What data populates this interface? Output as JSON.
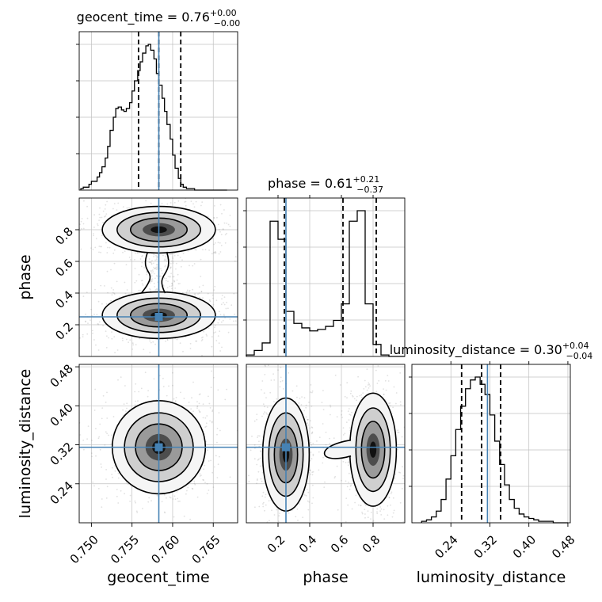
{
  "figure": {
    "type": "corner-plot"
  },
  "chart_data": {
    "type": "corner",
    "parameters": [
      "geocent_time",
      "phase",
      "luminosity_distance"
    ],
    "truths": {
      "geocent_time": 0.7583,
      "phase": 0.25,
      "luminosity_distance": 0.315
    },
    "panels": [
      {
        "id": "hist-geocent-time",
        "type": "histogram",
        "parameter": "geocent_time",
        "title_prefix": "geocent_time = 0.76",
        "title_sup": "+0.00",
        "title_sub": "−0.00",
        "xlim": [
          0.7485,
          0.768
        ],
        "bin_edges": [
          0.7487,
          0.749,
          0.7494,
          0.7497,
          0.75,
          0.7503,
          0.7507,
          0.751,
          0.7513,
          0.7517,
          0.752,
          0.7523,
          0.7527,
          0.753,
          0.7533,
          0.7537,
          0.754,
          0.7543,
          0.7547,
          0.755,
          0.7553,
          0.7557,
          0.756,
          0.7563,
          0.7567,
          0.757,
          0.7573,
          0.7577,
          0.758,
          0.7583,
          0.7587,
          0.759,
          0.7593,
          0.7597,
          0.76,
          0.7603,
          0.7607,
          0.761,
          0.7613,
          0.7617,
          0.762,
          0.7623,
          0.7627,
          0.763,
          0.7633,
          0.7637,
          0.764,
          0.7643,
          0.7647,
          0.765,
          0.7653,
          0.7657,
          0.766,
          0.7663,
          0.7667
        ],
        "counts": [
          1,
          2,
          2,
          4,
          6,
          6,
          9,
          12,
          16,
          22,
          30,
          41,
          50,
          56,
          57,
          55,
          54,
          56,
          60,
          68,
          75,
          82,
          88,
          94,
          99,
          100,
          96,
          90,
          80,
          72,
          63,
          54,
          45,
          35,
          24,
          15,
          8,
          4,
          2,
          1,
          1,
          1,
          0,
          0,
          0,
          0,
          0,
          0,
          0,
          0,
          0,
          0,
          0,
          0
        ],
        "counts_note": "relative",
        "quantiles": [
          0.7558,
          0.7583,
          0.761
        ],
        "truth": 0.7583
      },
      {
        "id": "hist-phase",
        "type": "histogram",
        "parameter": "phase",
        "title_prefix": "phase = 0.61",
        "title_sup": "+0.21",
        "title_sub": "−0.37",
        "xlim": [
          0.0,
          1.0
        ],
        "bin_edges": [
          0.0,
          0.05,
          0.1,
          0.15,
          0.2,
          0.25,
          0.3,
          0.35,
          0.4,
          0.45,
          0.5,
          0.55,
          0.6,
          0.65,
          0.7,
          0.75,
          0.8,
          0.85,
          0.9,
          0.95,
          1.0
        ],
        "counts": [
          1,
          4,
          9,
          90,
          78,
          30,
          22,
          19,
          17,
          18,
          20,
          24,
          35,
          90,
          97,
          35,
          8,
          1,
          0,
          0
        ],
        "counts_note": "relative",
        "quantiles": [
          0.24,
          0.61,
          0.82
        ],
        "truth": 0.25
      },
      {
        "id": "hist-luminosity-distance",
        "type": "histogram",
        "parameter": "luminosity_distance",
        "title_prefix": "luminosity_distance = 0.30",
        "title_sup": "+0.04",
        "title_sub": "−0.04",
        "xlim": [
          0.16,
          0.485
        ],
        "bin_edges": [
          0.18,
          0.19,
          0.2,
          0.21,
          0.22,
          0.23,
          0.24,
          0.25,
          0.26,
          0.27,
          0.28,
          0.29,
          0.3,
          0.31,
          0.32,
          0.33,
          0.34,
          0.35,
          0.36,
          0.37,
          0.38,
          0.39,
          0.4,
          0.41,
          0.42,
          0.43,
          0.44,
          0.45,
          0.46,
          0.47,
          0.48
        ],
        "counts": [
          1,
          2,
          4,
          8,
          16,
          30,
          46,
          64,
          80,
          92,
          98,
          100,
          95,
          88,
          74,
          56,
          40,
          26,
          16,
          10,
          6,
          4,
          3,
          2,
          1,
          1,
          1,
          0,
          0,
          0
        ],
        "counts_note": "relative",
        "quantiles": [
          0.262,
          0.303,
          0.342
        ],
        "truth": 0.315
      },
      {
        "id": "joint-geocent-phase",
        "type": "2d-density",
        "x": "geocent_time",
        "y": "phase",
        "xlim": [
          0.7485,
          0.768
        ],
        "ylim": [
          0.0,
          1.0
        ],
        "modes": [
          {
            "x": 0.7583,
            "y": 0.8
          },
          {
            "x": 0.7583,
            "y": 0.26
          }
        ]
      },
      {
        "id": "joint-geocent-ldist",
        "type": "2d-density",
        "x": "geocent_time",
        "y": "luminosity_distance",
        "xlim": [
          0.7485,
          0.768
        ],
        "ylim": [
          0.16,
          0.485
        ],
        "modes": [
          {
            "x": 0.7583,
            "y": 0.315
          }
        ]
      },
      {
        "id": "joint-phase-ldist",
        "type": "2d-density",
        "x": "phase",
        "y": "luminosity_distance",
        "xlim": [
          0.0,
          1.0
        ],
        "ylim": [
          0.16,
          0.485
        ],
        "modes": [
          {
            "x": 0.25,
            "y": 0.3
          },
          {
            "x": 0.8,
            "y": 0.31
          }
        ]
      }
    ],
    "ticks": {
      "geocent_time": [
        "0.750",
        "0.755",
        "0.760",
        "0.765"
      ],
      "geocent_time_values": [
        0.75,
        0.755,
        0.76,
        0.765
      ],
      "phase": [
        "0.2",
        "0.4",
        "0.6",
        "0.8"
      ],
      "phase_values": [
        0.2,
        0.4,
        0.6,
        0.8
      ],
      "luminosity_distance": [
        "0.24",
        "0.32",
        "0.40",
        "0.48"
      ],
      "luminosity_distance_values": [
        0.24,
        0.32,
        0.4,
        0.48
      ]
    },
    "axis_labels": {
      "x": [
        "geocent_time",
        "phase",
        "luminosity_distance"
      ],
      "y": [
        "phase",
        "luminosity_distance"
      ]
    },
    "grid": true,
    "colors": {
      "truth": "#4682b4",
      "hist": "#000000",
      "quantile": "#000000",
      "grid": "#c0c0c0",
      "scatter": "#888888"
    }
  }
}
